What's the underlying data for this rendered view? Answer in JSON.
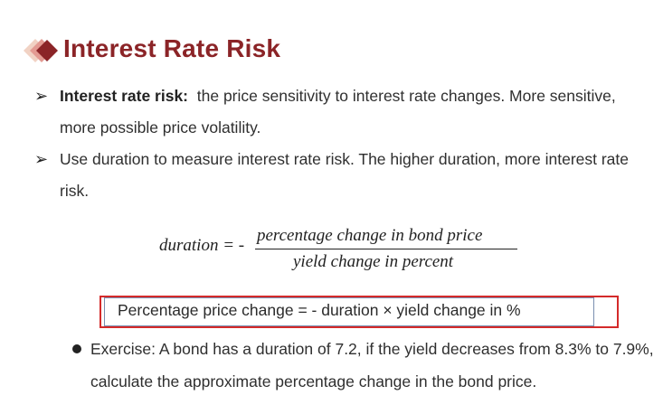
{
  "slide": {
    "title": "Interest Rate Risk",
    "accent_color": "#8b2427",
    "logo_icon": "diamond-arrow-icon"
  },
  "bullets": [
    {
      "marker": "➢",
      "term": "Interest rate risk:",
      "text": "the price sensitivity to interest rate changes. More sensitive, more possible price volatility."
    },
    {
      "marker": "➢",
      "text": "Use duration to measure interest rate risk. The higher duration, more interest rate risk."
    }
  ],
  "formula": {
    "lhs": "duration = -",
    "numerator": "percentage change in bond  price",
    "denominator": "yield change in  percent"
  },
  "highlight": {
    "text": "Percentage price change = - duration × yield change in %",
    "border_color": "#d42a2a"
  },
  "exercise": {
    "text": "Exercise:  A bond has a duration of 7.2, if the yield decreases from 8.3% to 7.9%, calculate the approximate percentage change in the bond price."
  }
}
